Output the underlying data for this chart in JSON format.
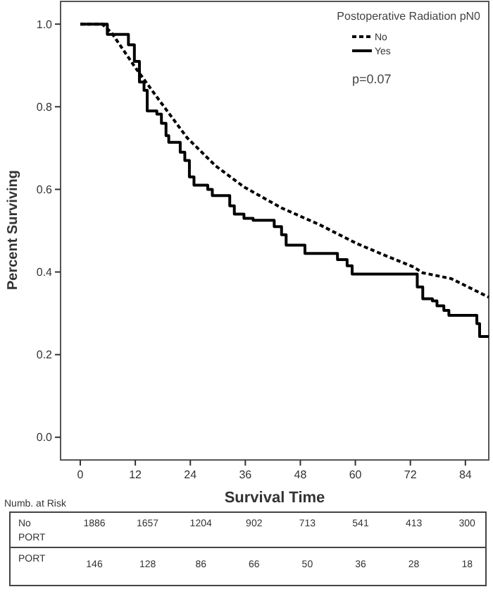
{
  "chart_data": {
    "type": "step",
    "xlabel": "Survival Time",
    "ylabel": "Percent Surviving",
    "legend_title": "Postoperative Radiation pN0",
    "legend": "top right",
    "xlim": [
      -4.3,
      89.1
    ],
    "ylim": [
      -0.055,
      1.055
    ],
    "xticks": [
      0,
      12,
      24,
      36,
      48,
      60,
      72,
      84
    ],
    "yticks": [
      {
        "value": 0,
        "label": "0.0"
      },
      0.2,
      0.4,
      0.6,
      0.8,
      {
        "value": 1,
        "label": "1.0"
      }
    ],
    "series": [
      {
        "name": "No",
        "type": "line",
        "color": "#000000",
        "line_style": "dotted",
        "x": [
          0,
          4.8,
          6.9,
          12,
          17.2,
          23.3,
          29.5,
          35.7,
          43.9,
          52.1,
          60.3,
          66.5,
          72.7,
          74.7,
          80.9,
          89.1
        ],
        "values": [
          1,
          1,
          0.978,
          0.895,
          0.816,
          0.725,
          0.657,
          0.606,
          0.555,
          0.515,
          0.469,
          0.44,
          0.412,
          0.398,
          0.384,
          0.339
        ]
      },
      {
        "name": "Yes",
        "color": "#000000",
        "line_style": "solid",
        "x": [
          0,
          5.9,
          10.5,
          11.8,
          12.9,
          13.9,
          14.6,
          16.7,
          17.7,
          18.7,
          19.3,
          20.8,
          21.8,
          22.8,
          23.8,
          24.8,
          26.8,
          27.8,
          28.8,
          31.6,
          32.6,
          33.6,
          35.7,
          37.7,
          41.3,
          42.3,
          43.9,
          44.9,
          48,
          49,
          55.1,
          56.1,
          58.2,
          59.3,
          73.2,
          73.5,
          74.7,
          76.8,
          77.8,
          79.3,
          80.4,
          85.5,
          86.5,
          87.1,
          89.1
        ],
        "values": [
          1,
          0.975,
          0.95,
          0.91,
          0.86,
          0.84,
          0.79,
          0.782,
          0.76,
          0.73,
          0.714,
          0.714,
          0.69,
          0.67,
          0.63,
          0.61,
          0.61,
          0.6,
          0.585,
          0.585,
          0.56,
          0.54,
          0.53,
          0.525,
          0.525,
          0.51,
          0.49,
          0.465,
          0.465,
          0.445,
          0.445,
          0.43,
          0.415,
          0.395,
          0.395,
          0.364,
          0.335,
          0.33,
          0.318,
          0.307,
          0.295,
          0.295,
          0.275,
          0.244,
          0.244
        ]
      }
    ],
    "annotations": [
      "p=0.07",
      "Numb. at Risk",
      "No PORT",
      "1886",
      "1657",
      "1204",
      "902",
      "713",
      "541",
      "413",
      "300",
      "PORT",
      "146",
      "128",
      "86",
      "66",
      "50",
      "36",
      "28",
      "18"
    ]
  }
}
